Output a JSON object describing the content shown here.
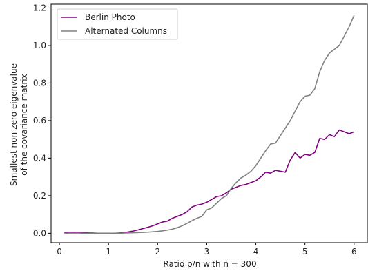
{
  "chart_data": {
    "type": "line",
    "title": "",
    "xlabel": "Ratio p/n with n = 300",
    "ylabel_lines": [
      "Smallest non-zero eigenvalue",
      "of the covariance matrix"
    ],
    "xlim": [
      -0.17,
      6.27
    ],
    "ylim": [
      -0.05,
      1.22
    ],
    "xticks": [
      0,
      1,
      2,
      3,
      4,
      5,
      6
    ],
    "yticks": [
      0.0,
      0.2,
      0.4,
      0.6,
      0.8,
      1.0,
      1.2
    ],
    "ytick_labels": [
      "0.0",
      "0.2",
      "0.4",
      "0.6",
      "0.8",
      "1.0",
      "1.2"
    ],
    "grid": false,
    "legend_position": "top-left",
    "x": [
      0.1,
      0.2,
      0.3,
      0.4,
      0.5,
      0.6,
      0.7,
      0.8,
      0.9,
      1.0,
      1.1,
      1.2,
      1.3,
      1.4,
      1.5,
      1.6,
      1.7,
      1.8,
      1.9,
      2.0,
      2.1,
      2.2,
      2.3,
      2.4,
      2.5,
      2.6,
      2.7,
      2.8,
      2.9,
      3.0,
      3.1,
      3.2,
      3.3,
      3.4,
      3.5,
      3.6,
      3.7,
      3.8,
      3.9,
      4.0,
      4.1,
      4.2,
      4.3,
      4.4,
      4.5,
      4.6,
      4.7,
      4.8,
      4.9,
      5.0,
      5.1,
      5.2,
      5.3,
      5.4,
      5.5,
      5.6,
      5.7,
      5.8,
      5.9,
      6.0
    ],
    "series": [
      {
        "name": "Berlin Photo",
        "color": "#800080",
        "values": [
          0.005,
          0.005,
          0.006,
          0.005,
          0.004,
          0.002,
          0.001,
          0.0,
          0.0,
          0.0,
          0.0,
          0.001,
          0.003,
          0.007,
          0.012,
          0.018,
          0.025,
          0.032,
          0.04,
          0.05,
          0.06,
          0.065,
          0.08,
          0.09,
          0.1,
          0.115,
          0.14,
          0.15,
          0.155,
          0.165,
          0.18,
          0.195,
          0.2,
          0.215,
          0.235,
          0.245,
          0.255,
          0.26,
          0.27,
          0.28,
          0.3,
          0.325,
          0.32,
          0.335,
          0.33,
          0.325,
          0.39,
          0.43,
          0.4,
          0.42,
          0.415,
          0.43,
          0.505,
          0.5,
          0.525,
          0.515,
          0.55,
          0.54,
          0.53,
          0.54
        ]
      },
      {
        "name": "Alternated Columns",
        "color": "#808080",
        "values": [
          0.0,
          0.001,
          0.001,
          0.001,
          0.0,
          0.0,
          0.0,
          0.0,
          0.0,
          0.0,
          0.0,
          0.0,
          0.001,
          0.002,
          0.003,
          0.004,
          0.005,
          0.006,
          0.008,
          0.01,
          0.013,
          0.017,
          0.022,
          0.03,
          0.04,
          0.053,
          0.067,
          0.08,
          0.09,
          0.125,
          0.135,
          0.16,
          0.185,
          0.2,
          0.24,
          0.27,
          0.295,
          0.31,
          0.33,
          0.36,
          0.4,
          0.44,
          0.475,
          0.48,
          0.52,
          0.56,
          0.6,
          0.65,
          0.7,
          0.73,
          0.735,
          0.77,
          0.86,
          0.92,
          0.96,
          0.98,
          1.0,
          1.05,
          1.1,
          1.16
        ]
      }
    ]
  }
}
